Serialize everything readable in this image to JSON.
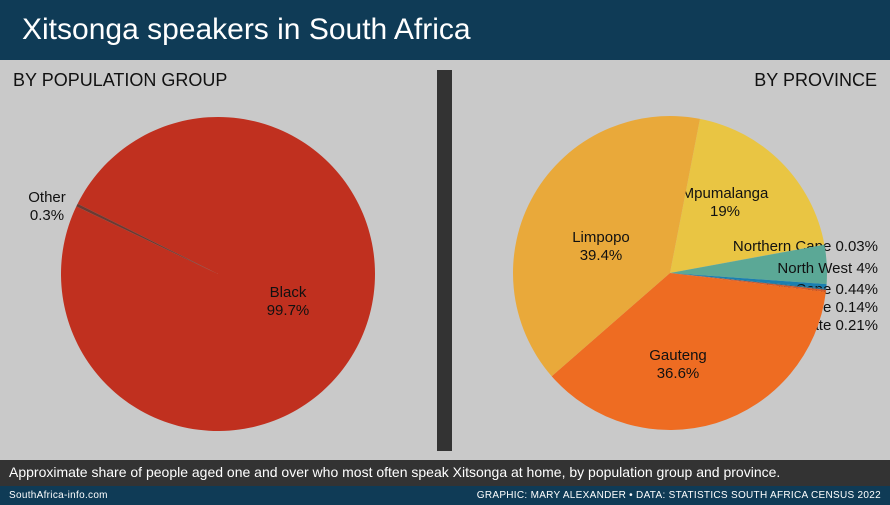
{
  "header": {
    "title": "Xitsonga speakers in South Africa"
  },
  "caption": "Approximate share of people aged one and over who most often speak Xitsonga at home, by population group and province.",
  "footer": {
    "site": "SouthAfrica-info.com",
    "credit": "GRAPHIC: MARY ALEXANDER • DATA: STATISTICS SOUTH AFRICA CENSUS 2022"
  },
  "chart_data": [
    {
      "type": "pie",
      "title": "BY POPULATION GROUP",
      "slices": [
        {
          "label": "Black",
          "value": 99.7,
          "display": "99.7%",
          "color": "#c0301f"
        },
        {
          "label": "Other",
          "value": 0.3,
          "display": "0.3%",
          "color": "#6b3a33"
        }
      ]
    },
    {
      "type": "pie",
      "title": "BY PROVINCE",
      "slices": [
        {
          "label": "Mpumalanga",
          "value": 19,
          "display": "19%",
          "color": "#e9c543"
        },
        {
          "label": "Northern Cape",
          "value": 0.03,
          "display": "0.03%",
          "color": "#a0b070"
        },
        {
          "label": "North West",
          "value": 4,
          "display": "4%",
          "color": "#5ba896"
        },
        {
          "label": "Western Cape",
          "value": 0.44,
          "display": "0.44%",
          "color": "#1a7fb0"
        },
        {
          "label": "Eastern Cape",
          "value": 0.14,
          "display": "0.14%",
          "color": "#2a6f8f"
        },
        {
          "label": "Free State",
          "value": 0.21,
          "display": "0.21%",
          "color": "#d45a2a"
        },
        {
          "label": "Gauteng",
          "value": 36.6,
          "display": "36.6%",
          "color": "#ee6c22"
        },
        {
          "label": "Limpopo",
          "value": 39.4,
          "display": "39.4%",
          "color": "#e9a93a"
        }
      ]
    }
  ]
}
